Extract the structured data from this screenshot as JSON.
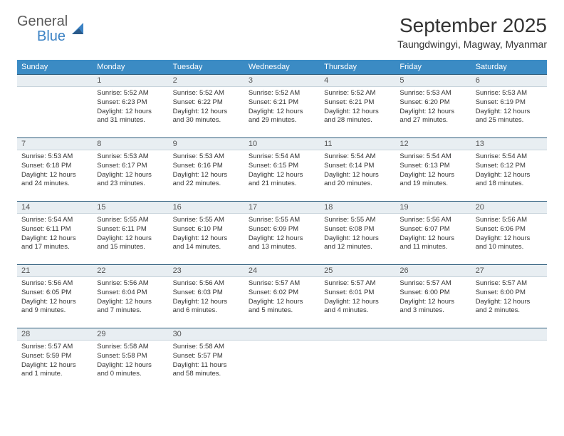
{
  "logo": {
    "word1": "General",
    "word2": "Blue"
  },
  "title": "September 2025",
  "location": "Taungdwingyi, Magway, Myanmar",
  "colors": {
    "header_bg": "#3b8bc4",
    "header_text": "#ffffff",
    "daynum_bg": "#e8eef2",
    "daynum_border_top": "#2a5a7a",
    "logo_gray": "#5a5a5a",
    "logo_blue": "#3b82c4"
  },
  "weekdays": [
    "Sunday",
    "Monday",
    "Tuesday",
    "Wednesday",
    "Thursday",
    "Friday",
    "Saturday"
  ],
  "weeks": [
    [
      null,
      {
        "n": "1",
        "sr": "5:52 AM",
        "ss": "6:23 PM",
        "dl": "12 hours and 31 minutes."
      },
      {
        "n": "2",
        "sr": "5:52 AM",
        "ss": "6:22 PM",
        "dl": "12 hours and 30 minutes."
      },
      {
        "n": "3",
        "sr": "5:52 AM",
        "ss": "6:21 PM",
        "dl": "12 hours and 29 minutes."
      },
      {
        "n": "4",
        "sr": "5:52 AM",
        "ss": "6:21 PM",
        "dl": "12 hours and 28 minutes."
      },
      {
        "n": "5",
        "sr": "5:53 AM",
        "ss": "6:20 PM",
        "dl": "12 hours and 27 minutes."
      },
      {
        "n": "6",
        "sr": "5:53 AM",
        "ss": "6:19 PM",
        "dl": "12 hours and 25 minutes."
      }
    ],
    [
      {
        "n": "7",
        "sr": "5:53 AM",
        "ss": "6:18 PM",
        "dl": "12 hours and 24 minutes."
      },
      {
        "n": "8",
        "sr": "5:53 AM",
        "ss": "6:17 PM",
        "dl": "12 hours and 23 minutes."
      },
      {
        "n": "9",
        "sr": "5:53 AM",
        "ss": "6:16 PM",
        "dl": "12 hours and 22 minutes."
      },
      {
        "n": "10",
        "sr": "5:54 AM",
        "ss": "6:15 PM",
        "dl": "12 hours and 21 minutes."
      },
      {
        "n": "11",
        "sr": "5:54 AM",
        "ss": "6:14 PM",
        "dl": "12 hours and 20 minutes."
      },
      {
        "n": "12",
        "sr": "5:54 AM",
        "ss": "6:13 PM",
        "dl": "12 hours and 19 minutes."
      },
      {
        "n": "13",
        "sr": "5:54 AM",
        "ss": "6:12 PM",
        "dl": "12 hours and 18 minutes."
      }
    ],
    [
      {
        "n": "14",
        "sr": "5:54 AM",
        "ss": "6:11 PM",
        "dl": "12 hours and 17 minutes."
      },
      {
        "n": "15",
        "sr": "5:55 AM",
        "ss": "6:11 PM",
        "dl": "12 hours and 15 minutes."
      },
      {
        "n": "16",
        "sr": "5:55 AM",
        "ss": "6:10 PM",
        "dl": "12 hours and 14 minutes."
      },
      {
        "n": "17",
        "sr": "5:55 AM",
        "ss": "6:09 PM",
        "dl": "12 hours and 13 minutes."
      },
      {
        "n": "18",
        "sr": "5:55 AM",
        "ss": "6:08 PM",
        "dl": "12 hours and 12 minutes."
      },
      {
        "n": "19",
        "sr": "5:56 AM",
        "ss": "6:07 PM",
        "dl": "12 hours and 11 minutes."
      },
      {
        "n": "20",
        "sr": "5:56 AM",
        "ss": "6:06 PM",
        "dl": "12 hours and 10 minutes."
      }
    ],
    [
      {
        "n": "21",
        "sr": "5:56 AM",
        "ss": "6:05 PM",
        "dl": "12 hours and 9 minutes."
      },
      {
        "n": "22",
        "sr": "5:56 AM",
        "ss": "6:04 PM",
        "dl": "12 hours and 7 minutes."
      },
      {
        "n": "23",
        "sr": "5:56 AM",
        "ss": "6:03 PM",
        "dl": "12 hours and 6 minutes."
      },
      {
        "n": "24",
        "sr": "5:57 AM",
        "ss": "6:02 PM",
        "dl": "12 hours and 5 minutes."
      },
      {
        "n": "25",
        "sr": "5:57 AM",
        "ss": "6:01 PM",
        "dl": "12 hours and 4 minutes."
      },
      {
        "n": "26",
        "sr": "5:57 AM",
        "ss": "6:00 PM",
        "dl": "12 hours and 3 minutes."
      },
      {
        "n": "27",
        "sr": "5:57 AM",
        "ss": "6:00 PM",
        "dl": "12 hours and 2 minutes."
      }
    ],
    [
      {
        "n": "28",
        "sr": "5:57 AM",
        "ss": "5:59 PM",
        "dl": "12 hours and 1 minute."
      },
      {
        "n": "29",
        "sr": "5:58 AM",
        "ss": "5:58 PM",
        "dl": "12 hours and 0 minutes."
      },
      {
        "n": "30",
        "sr": "5:58 AM",
        "ss": "5:57 PM",
        "dl": "11 hours and 58 minutes."
      },
      null,
      null,
      null,
      null
    ]
  ],
  "labels": {
    "sunrise": "Sunrise:",
    "sunset": "Sunset:",
    "daylight": "Daylight:"
  }
}
